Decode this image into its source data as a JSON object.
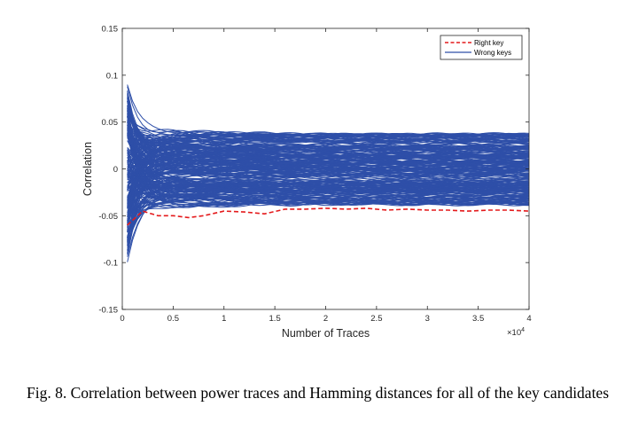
{
  "chart_data": {
    "type": "line",
    "xlabel": "Number of Traces",
    "ylabel": "Correlation",
    "x_exponent_label": "×10",
    "x_exponent_power": "4",
    "xlim": [
      0,
      4
    ],
    "ylim": [
      -0.15,
      0.15
    ],
    "x_ticks": [
      0,
      0.5,
      1,
      1.5,
      2,
      2.5,
      3,
      3.5,
      4
    ],
    "x_tick_labels": [
      "0",
      "0.5",
      "1",
      "1.5",
      "2",
      "2.5",
      "3",
      "3.5",
      "4"
    ],
    "y_ticks": [
      -0.15,
      -0.1,
      -0.05,
      0,
      0.05,
      0.1,
      0.15
    ],
    "y_tick_labels": [
      "-0.15",
      "-0.1",
      "-0.05",
      "0",
      "0.05",
      "0.1",
      "0.15"
    ],
    "legend_position": "top-right",
    "series": [
      {
        "name": "Right key",
        "style": "dashed",
        "color": "#e41a1c",
        "x": [
          0.05,
          0.2,
          0.35,
          0.5,
          0.65,
          0.8,
          1.0,
          1.2,
          1.4,
          1.6,
          1.8,
          2.0,
          2.2,
          2.4,
          2.6,
          2.8,
          3.0,
          3.2,
          3.4,
          3.6,
          3.8,
          4.0
        ],
        "values": [
          -0.06,
          -0.045,
          -0.05,
          -0.05,
          -0.052,
          -0.05,
          -0.045,
          -0.046,
          -0.048,
          -0.043,
          -0.043,
          -0.042,
          -0.043,
          -0.042,
          -0.044,
          -0.043,
          -0.044,
          -0.044,
          -0.045,
          -0.044,
          -0.044,
          -0.045
        ]
      },
      {
        "name": "Wrong keys",
        "style": "solid",
        "color": "#2e4fa8",
        "description_range": "255 curves converging from about ±0.13 near x=0 to about ±0.04 at x=4"
      }
    ]
  },
  "caption": "Fig. 8.  Correlation between power traces and Hamming distances for all of the key candidates",
  "colors": {
    "wrong": "#2e4fa8",
    "right": "#e41a1c",
    "axis": "#262626"
  }
}
